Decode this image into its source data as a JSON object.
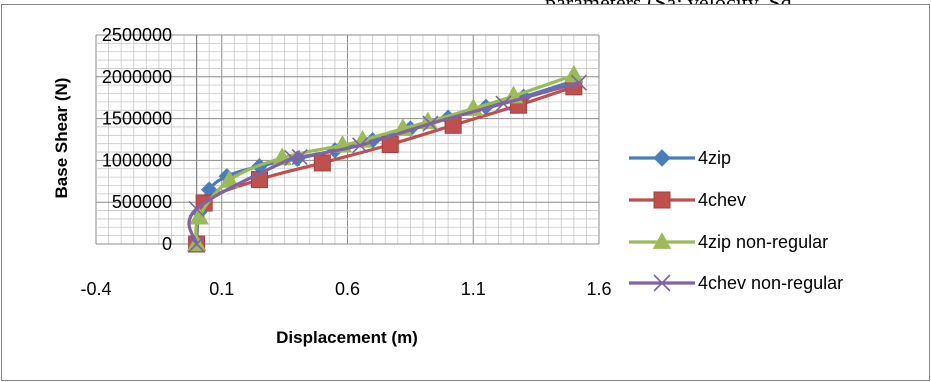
{
  "header_fragment": "parameters (Sa: velocity, Sd",
  "chart_data": {
    "type": "line",
    "title": "",
    "xlabel": "Displacement (m)",
    "ylabel": "Base Shear (N)",
    "xlim": [
      -0.4,
      1.6
    ],
    "ylim": [
      0,
      2500000
    ],
    "x_ticks": [
      -0.4,
      0.1,
      0.6,
      1.1,
      1.6
    ],
    "x_tick_labels": [
      "-0.4",
      "0.1",
      "0.6",
      "1.1",
      "1.6"
    ],
    "y_ticks": [
      0,
      500000,
      1000000,
      1500000,
      2000000,
      2500000
    ],
    "y_tick_labels": [
      "0",
      "500000",
      "1000000",
      "1500000",
      "2000000",
      "2500000"
    ],
    "x_minor_step": 0.05,
    "y_minor_step": 100000,
    "grid": true,
    "legend_position": "right",
    "series": [
      {
        "name": "4zip",
        "color": "#4A7EBB",
        "marker": "diamond",
        "x": [
          0.0,
          0.01,
          0.05,
          0.12,
          0.25,
          0.4,
          0.55,
          0.7,
          0.85,
          1.0,
          1.15,
          1.3,
          1.5
        ],
        "y": [
          0,
          380000,
          650000,
          810000,
          930000,
          1020000,
          1120000,
          1240000,
          1380000,
          1510000,
          1640000,
          1760000,
          1950000
        ]
      },
      {
        "name": "4chev",
        "color": "#C0504D",
        "marker": "square",
        "x": [
          0.0,
          0.03,
          0.25,
          0.5,
          0.77,
          1.02,
          1.28,
          1.5
        ],
        "y": [
          0,
          490000,
          770000,
          970000,
          1190000,
          1420000,
          1660000,
          1880000
        ]
      },
      {
        "name": "4zip non-regular",
        "color": "#9BBB59",
        "marker": "triangle",
        "x": [
          0.0,
          0.01,
          0.13,
          0.34,
          0.58,
          0.66,
          0.82,
          0.92,
          1.1,
          1.26,
          1.5
        ],
        "y": [
          0,
          320000,
          760000,
          1030000,
          1180000,
          1240000,
          1380000,
          1460000,
          1620000,
          1770000,
          2020000
        ]
      },
      {
        "name": "4chev non-regular",
        "color": "#8064A2",
        "marker": "x",
        "x": [
          0.0,
          0.0,
          0.38,
          0.41,
          0.65,
          0.93,
          1.22,
          1.52
        ],
        "y": [
          0,
          420000,
          1030000,
          1040000,
          1180000,
          1440000,
          1680000,
          1930000
        ]
      }
    ]
  }
}
